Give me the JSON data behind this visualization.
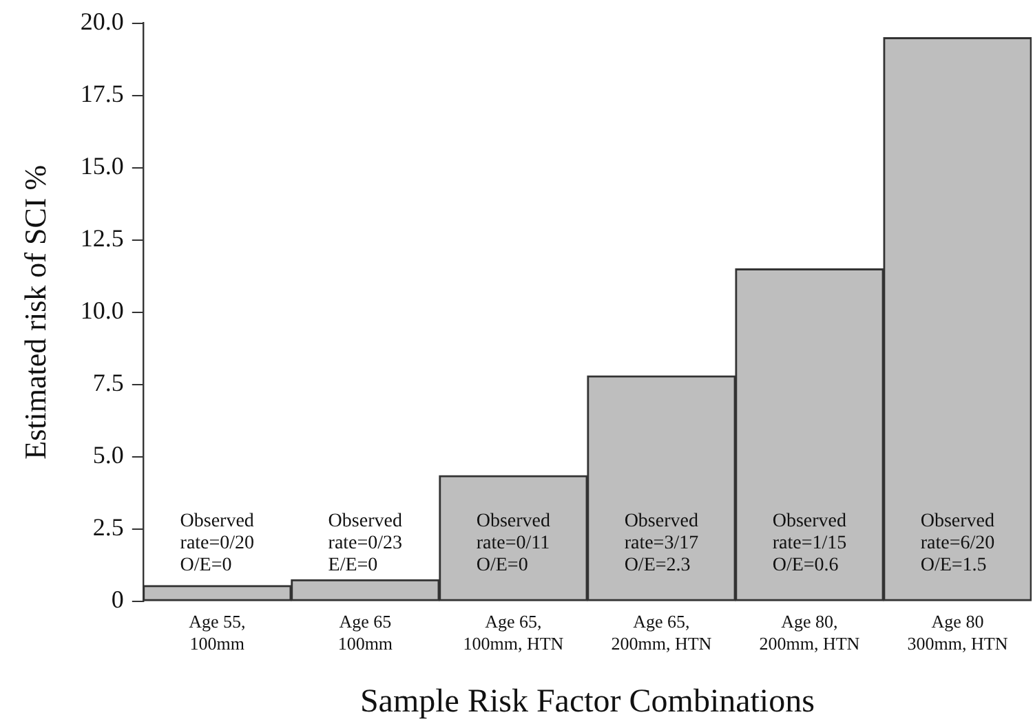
{
  "chart_data": {
    "type": "bar",
    "xlabel": "Sample Risk Factor Combinations",
    "ylabel": "Estimated risk of SCI %",
    "categories": [
      "Age 55,\n100mm",
      "Age 65\n100mm",
      "Age 65,\n100mm, HTN",
      "Age 65,\n200mm, HTN",
      "Age 80,\n200mm, HTN",
      "Age 80\n300mm, HTN"
    ],
    "values": [
      0.55,
      0.75,
      4.35,
      7.8,
      11.5,
      19.5
    ],
    "color": "#bebebe",
    "ylim": [
      0,
      20
    ],
    "yticks": [
      0,
      2.5,
      {
        "value": 5,
        "label": "5.0"
      },
      7.5,
      {
        "value": 10,
        "label": "10.0"
      },
      12.5,
      {
        "value": 15,
        "label": "15.0"
      },
      17.5,
      {
        "value": 20,
        "label": "20.0"
      }
    ],
    "grid": false,
    "legend": false,
    "annotations": [
      "Observed\nrate=0/20\nO/E=0",
      "Observed\nrate=0/23\nE/E=0",
      "Observed\nrate=0/11\nO/E=0",
      "Observed\nrate=3/17\nO/E=2.3",
      "Observed\nrate=1/15\nO/E=0.6",
      "Observed\nrate=6/20\nO/E=1.5"
    ]
  }
}
